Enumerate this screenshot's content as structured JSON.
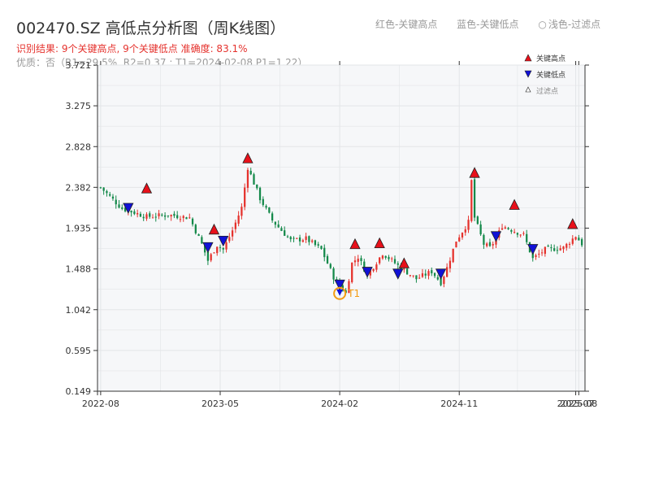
{
  "header": {
    "title": "002470.SZ 高低点分析图（周K线图）",
    "subtitle": "识别结果: 9个关键高点, 9个关键低点  准确度: 83.1%",
    "subtitle2": "优质：否（R1=29.5%, R2=0.37 ; T1=2024-02-08 P1=1.22）",
    "legend_top": [
      "红色-关键高点",
      "蓝色-关键低点",
      "浅色-过滤点"
    ],
    "legend_top_symbol": "○"
  },
  "colors": {
    "up": "#e5322d",
    "down": "#14894a",
    "high_marker": "#e8101a",
    "low_marker": "#1111d6",
    "annotation": "#f39c12",
    "plot_bg": "#f6f7f9",
    "grid": "#e3e5e8"
  },
  "chart_data": {
    "type": "candlestick",
    "xlabel": "",
    "ylabel": "",
    "ylim": [
      0.149,
      3.721
    ],
    "y_ticks": [
      "0.149",
      "0.595",
      "1.042",
      "1.488",
      "1.935",
      "2.382",
      "2.828",
      "3.275",
      "3.721"
    ],
    "x_ticks": [
      "2022-08",
      "2023-05",
      "2024-02",
      "2024-11",
      "2025-07",
      "2025-08"
    ],
    "x_tick_positions": [
      0,
      39,
      78,
      117,
      155,
      156
    ],
    "n_weeks": 158,
    "grid": true,
    "legend_position": "top-right",
    "legend": [
      "关键高点",
      "关键低点",
      "过滤点"
    ],
    "series": [
      {
        "name": "close",
        "x": [
          0,
          7,
          15,
          22,
          29,
          33,
          35,
          38,
          40,
          43,
          46,
          48,
          52,
          56,
          62,
          67,
          72,
          76,
          80,
          82,
          84,
          87,
          92,
          98,
          103,
          108,
          111,
          113,
          116,
          120,
          121,
          122,
          125,
          127,
          129,
          131,
          138,
          141,
          145,
          151,
          155,
          158
        ],
        "values": [
          2.38,
          2.15,
          2.06,
          2.08,
          2.05,
          1.76,
          1.58,
          1.75,
          1.7,
          1.91,
          2.16,
          2.6,
          2.26,
          2.02,
          1.8,
          1.82,
          1.7,
          1.4,
          1.22,
          1.55,
          1.62,
          1.42,
          1.66,
          1.5,
          1.38,
          1.46,
          1.34,
          1.5,
          1.8,
          2.0,
          2.45,
          2.05,
          1.76,
          1.72,
          1.82,
          1.96,
          1.86,
          1.6,
          1.7,
          1.72,
          1.85,
          1.72
        ]
      }
    ],
    "key_highs": [
      {
        "x": 15,
        "value": 2.32
      },
      {
        "x": 37,
        "value": 1.87
      },
      {
        "x": 48,
        "value": 2.65
      },
      {
        "x": 83,
        "value": 1.71
      },
      {
        "x": 91,
        "value": 1.72
      },
      {
        "x": 99,
        "value": 1.5
      },
      {
        "x": 122,
        "value": 2.49
      },
      {
        "x": 135,
        "value": 2.14
      },
      {
        "x": 154,
        "value": 1.93
      }
    ],
    "key_lows": [
      {
        "x": 9,
        "value": 2.1
      },
      {
        "x": 35,
        "value": 1.67
      },
      {
        "x": 40,
        "value": 1.74
      },
      {
        "x": 78,
        "value": 1.26
      },
      {
        "x": 87,
        "value": 1.4
      },
      {
        "x": 97,
        "value": 1.38
      },
      {
        "x": 111,
        "value": 1.38
      },
      {
        "x": 129,
        "value": 1.79
      },
      {
        "x": 141,
        "value": 1.65
      }
    ],
    "annotation": {
      "label": "T1",
      "x": 78,
      "value": 1.22
    }
  }
}
